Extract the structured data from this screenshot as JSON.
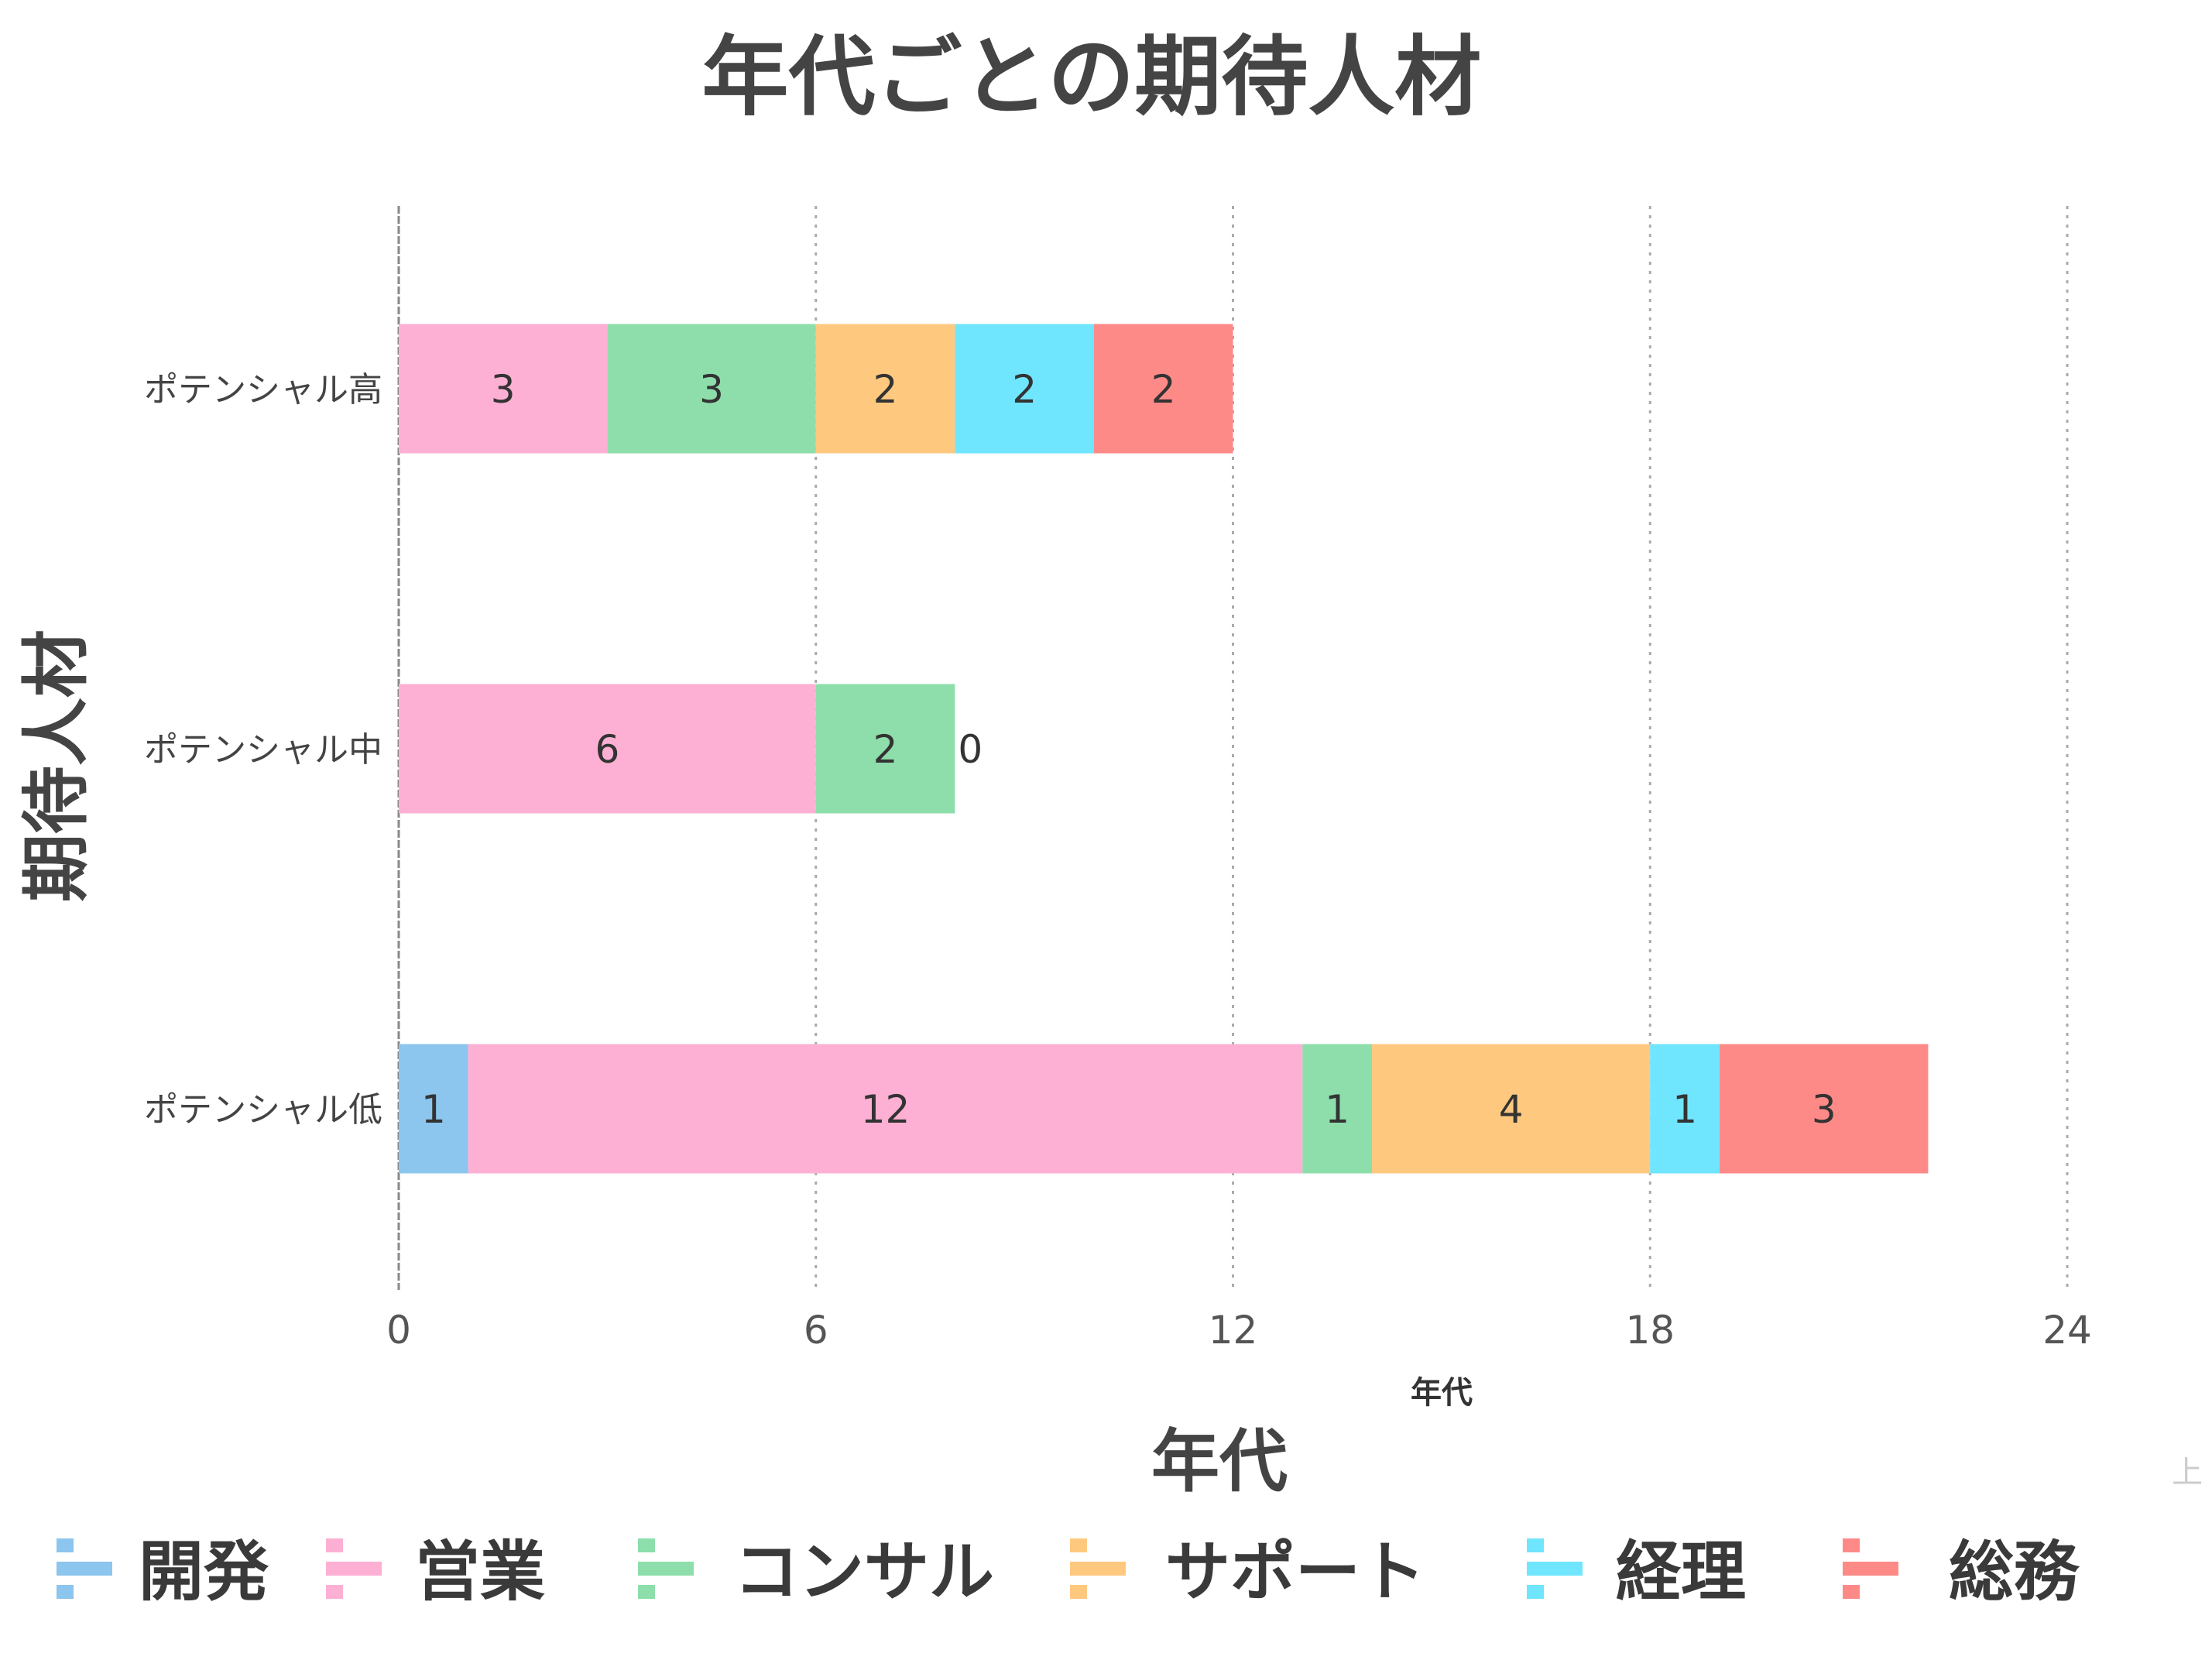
{
  "chart_data": {
    "type": "bar",
    "orientation": "horizontal",
    "stacked": true,
    "title": "年代ごとの期待人材",
    "xlabel": "年代",
    "xlabel_small": "年代",
    "ylabel": "期待人材",
    "xlim": [
      0,
      24
    ],
    "xticks": [
      "0",
      "6",
      "12",
      "18",
      "24"
    ],
    "grid": "vertical dotted",
    "legend_position": "bottom",
    "categories": [
      "ポテンシャル高",
      "ポテンシャル中",
      "ポテンシャル低"
    ],
    "series": [
      {
        "name": "開発",
        "color": "#8cc5ee",
        "values": [
          0,
          0,
          1
        ]
      },
      {
        "name": "営業",
        "color": "#fdb0d3",
        "values": [
          3,
          6,
          12
        ]
      },
      {
        "name": "コンサル",
        "color": "#8ddeab",
        "values": [
          3,
          2,
          1
        ]
      },
      {
        "name": "サポート",
        "color": "#fec97f",
        "values": [
          2,
          0,
          4
        ]
      },
      {
        "name": "経理",
        "color": "#70e5fe",
        "values": [
          2,
          null,
          1
        ]
      },
      {
        "name": "総務",
        "color": "#fe8a88",
        "values": [
          2,
          null,
          3
        ]
      }
    ],
    "corner_text": "上"
  }
}
